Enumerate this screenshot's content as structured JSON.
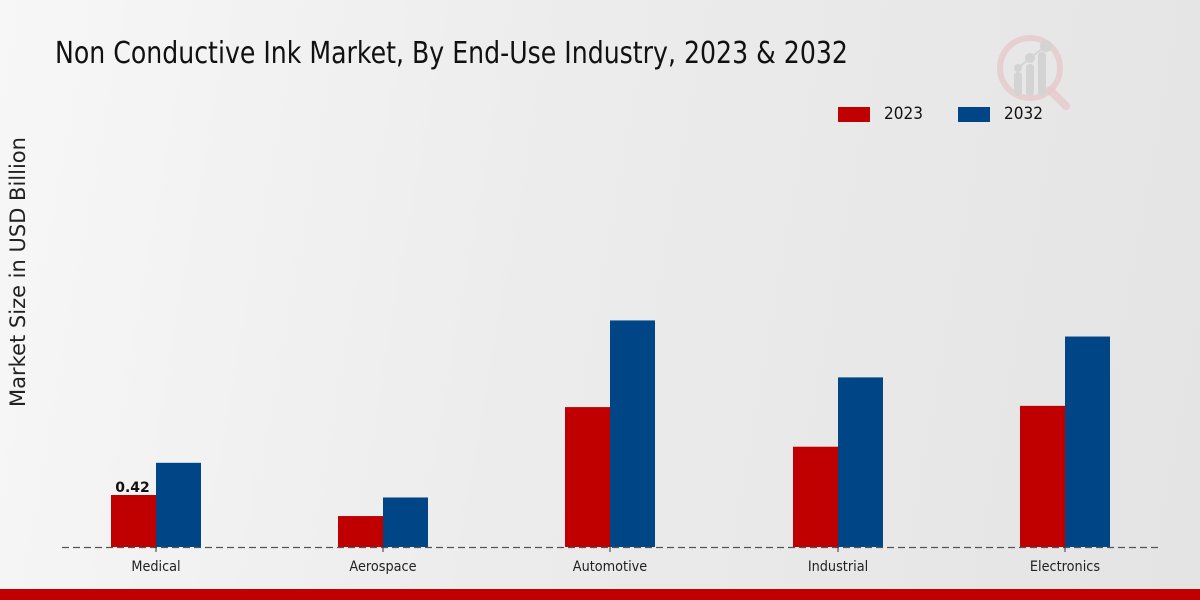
{
  "chart_data": {
    "type": "bar",
    "title": "Non Conductive Ink Market, By End-Use Industry, 2023 & 2032",
    "xlabel": "",
    "ylabel": "Market Size in USD Billion",
    "categories": [
      "Medical",
      "Aerospace",
      "Automotive",
      "Industrial",
      "Electronics"
    ],
    "series": [
      {
        "name": "2023",
        "color": "#c00000",
        "values": [
          0.42,
          0.25,
          1.13,
          0.81,
          1.14
        ]
      },
      {
        "name": "2032",
        "color": "#004687",
        "values": [
          0.68,
          0.4,
          1.83,
          1.37,
          1.7
        ]
      }
    ],
    "data_labels": [
      {
        "series": "2023",
        "category": "Medical",
        "text": "0.42"
      }
    ],
    "ylim": [
      0,
      3.25
    ],
    "grid": false,
    "baseline": "dashed",
    "legend_position": "top-right"
  },
  "legend": [
    {
      "label": "2023",
      "color": "#c00000"
    },
    {
      "label": "2032",
      "color": "#004687"
    }
  ],
  "logo": {
    "icon": "market-research-logo-icon"
  },
  "footer_bar_color": "#c00000"
}
